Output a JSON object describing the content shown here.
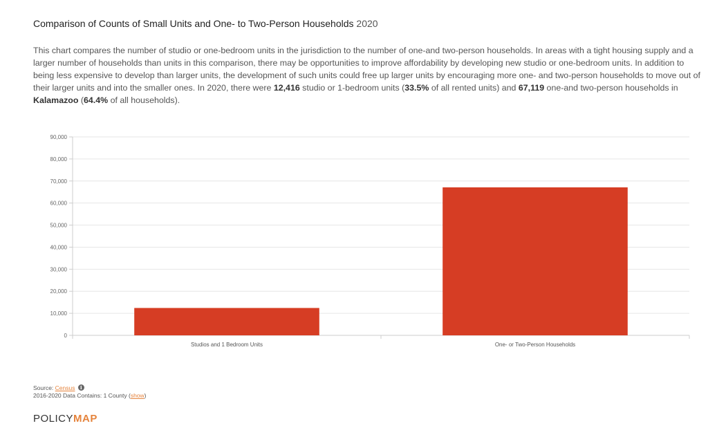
{
  "header": {
    "title": "Comparison of Counts of Small Units and One- to Two-Person Households",
    "year": "2020"
  },
  "description": {
    "intro": "This chart compares the number of studio or one-bedroom units in the jurisdiction to the number of one-and two-person households. In areas with a tight housing supply and a larger number of households than units in this comparison, there may be opportunities to improve affordability by developing new studio or one-bedroom units. In addition to being less expensive to develop than larger units, the development of such units could free up larger units by encouraging more one- and two-person households to move out of their larger units and into the smaller ones. In 2020, there were ",
    "small_units_count": "12,416",
    "text_after_small_units": " studio or 1-bedroom units (",
    "small_units_pct": "33.5%",
    "text_after_small_pct": " of all rented units) and ",
    "households_count": "67,119",
    "text_after_households": " one-and two-person households in ",
    "place": "Kalamazoo",
    "text_after_place": " (",
    "households_pct": "64.4%",
    "text_end": " of all households)."
  },
  "chart_data": {
    "type": "bar",
    "categories": [
      "Studios and 1 Bedroom Units",
      "One- or Two-Person Households"
    ],
    "values": [
      12416,
      67119
    ],
    "ylim": [
      0,
      90000
    ],
    "yticks": [
      0,
      10000,
      20000,
      30000,
      40000,
      50000,
      60000,
      70000,
      80000,
      90000
    ],
    "ytick_labels": [
      "0",
      "10,000",
      "20,000",
      "30,000",
      "40,000",
      "50,000",
      "60,000",
      "70,000",
      "80,000",
      "90,000"
    ],
    "bar_color": "#d63d24",
    "grid": true,
    "xlabel": "",
    "ylabel": ""
  },
  "footer": {
    "source_label": "Source: ",
    "source_link": "Census",
    "info_glyph": "i",
    "data_note": "2016-2020 Data Contains: 1 County (",
    "show_link": "show",
    "data_note_end": ")"
  },
  "logo": {
    "part1": "POLICY",
    "part2": "MAP"
  },
  "colors": {
    "accent": "#e5833c",
    "bar": "#d63d24",
    "grid": "#e6e6e6"
  }
}
